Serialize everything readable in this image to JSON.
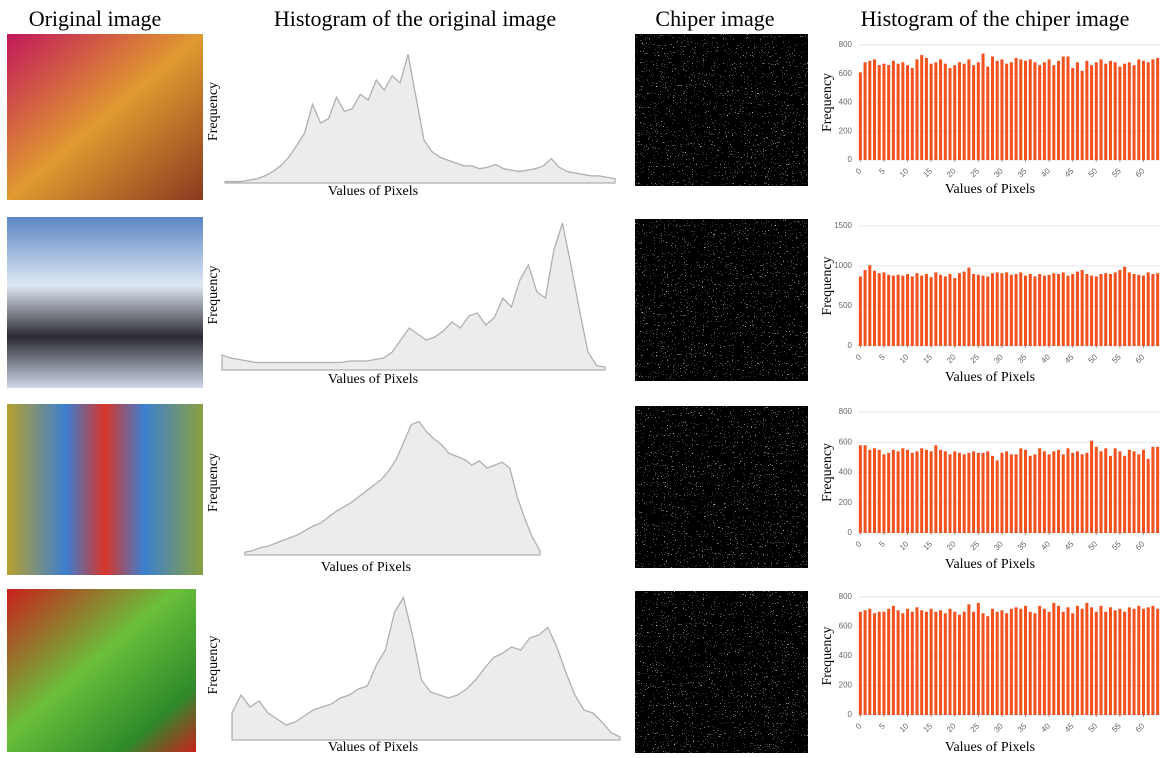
{
  "headers": [
    "Original image",
    "Histogram of the original image",
    "Chiper image",
    "Histogram of the chiper image"
  ],
  "chart_data": [
    {
      "type": "area",
      "xlabel": "Values of Pixels",
      "ylabel": "Frequency",
      "ylim": [
        0,
        100
      ],
      "color": "#b0b0b0",
      "values": [
        1,
        1,
        1,
        2,
        3,
        5,
        8,
        12,
        18,
        26,
        35,
        55,
        42,
        45,
        60,
        50,
        52,
        62,
        58,
        72,
        65,
        75,
        70,
        90,
        60,
        30,
        22,
        18,
        16,
        14,
        12,
        12,
        10,
        11,
        13,
        10,
        9,
        8,
        9,
        10,
        12,
        17,
        11,
        8,
        7,
        6,
        5,
        5,
        4,
        3
      ]
    },
    {
      "type": "bar",
      "xlabel": "Values of Pixels",
      "ylabel": "Frequency",
      "ylim": [
        0,
        800
      ],
      "yticks": [
        0,
        200,
        400,
        600,
        800
      ],
      "xlim": [
        -0.5,
        63.5
      ],
      "xticks": [
        0,
        5,
        10,
        15,
        20,
        25,
        30,
        35,
        40,
        45,
        50,
        55,
        60
      ],
      "color": "#f4511e",
      "values": [
        610,
        680,
        690,
        700,
        660,
        670,
        660,
        690,
        670,
        680,
        660,
        640,
        700,
        730,
        710,
        670,
        680,
        700,
        670,
        640,
        660,
        680,
        670,
        700,
        660,
        680,
        740,
        650,
        720,
        690,
        700,
        670,
        680,
        710,
        700,
        690,
        700,
        680,
        660,
        680,
        700,
        660,
        690,
        720,
        720,
        640,
        680,
        620,
        690,
        660,
        680,
        700,
        670,
        690,
        680,
        650,
        670,
        680,
        660,
        700,
        690,
        680,
        700,
        710
      ]
    },
    {
      "type": "area",
      "xlabel": "Values of Pixels",
      "ylabel": "Frequency",
      "ylim": [
        0,
        100
      ],
      "color": "#b0b0b0",
      "values": [
        10,
        8,
        7,
        6,
        5,
        5,
        5,
        5,
        5,
        5,
        5,
        5,
        5,
        5,
        5,
        6,
        6,
        6,
        7,
        8,
        12,
        20,
        28,
        24,
        20,
        22,
        26,
        32,
        28,
        36,
        38,
        30,
        35,
        48,
        42,
        60,
        70,
        52,
        48,
        80,
        98,
        70,
        40,
        12,
        3,
        2
      ]
    },
    {
      "type": "bar",
      "xlabel": "Values of Pixels",
      "ylabel": "Frequency",
      "ylim": [
        0,
        1500
      ],
      "yticks": [
        0,
        500,
        1000,
        1500
      ],
      "xlim": [
        -0.5,
        63.5
      ],
      "xticks": [
        0,
        5,
        10,
        15,
        20,
        25,
        30,
        35,
        40,
        45,
        50,
        55,
        60
      ],
      "color": "#f4511e",
      "values": [
        870,
        950,
        1010,
        940,
        910,
        920,
        890,
        880,
        890,
        880,
        900,
        870,
        910,
        880,
        900,
        860,
        920,
        890,
        870,
        900,
        850,
        910,
        930,
        980,
        900,
        890,
        880,
        870,
        910,
        920,
        910,
        920,
        890,
        900,
        920,
        880,
        900,
        870,
        900,
        880,
        890,
        910,
        900,
        920,
        880,
        900,
        930,
        950,
        900,
        880,
        870,
        900,
        910,
        900,
        920,
        950,
        990,
        920,
        900,
        890,
        880,
        920,
        900,
        910
      ]
    },
    {
      "type": "area",
      "xlabel": "Values of Pixels",
      "ylabel": "Frequency",
      "ylim": [
        0,
        100
      ],
      "color": "#b0b0b0",
      "values": [
        2,
        3,
        5,
        6,
        8,
        10,
        12,
        14,
        17,
        20,
        22,
        26,
        30,
        33,
        36,
        40,
        44,
        48,
        52,
        58,
        66,
        78,
        90,
        92,
        85,
        80,
        76,
        70,
        68,
        66,
        62,
        65,
        60,
        62,
        64,
        60,
        40,
        25,
        12,
        3
      ]
    },
    {
      "type": "bar",
      "xlabel": "Values of Pixels",
      "ylabel": "Frequency",
      "ylim": [
        0,
        800
      ],
      "yticks": [
        0,
        200,
        400,
        600,
        800
      ],
      "xlim": [
        -0.5,
        63.5
      ],
      "xticks": [
        0,
        5,
        10,
        15,
        20,
        25,
        30,
        35,
        40,
        45,
        50,
        55,
        60
      ],
      "color": "#f4511e",
      "values": [
        580,
        580,
        550,
        560,
        550,
        520,
        530,
        550,
        540,
        560,
        550,
        530,
        540,
        560,
        550,
        540,
        580,
        550,
        540,
        520,
        540,
        530,
        520,
        530,
        540,
        530,
        530,
        540,
        510,
        480,
        530,
        540,
        520,
        520,
        560,
        550,
        510,
        520,
        560,
        540,
        520,
        540,
        550,
        520,
        560,
        530,
        540,
        520,
        530,
        610,
        570,
        540,
        560,
        510,
        560,
        540,
        510,
        550,
        540,
        520,
        550,
        490,
        570,
        570
      ]
    },
    {
      "type": "area",
      "xlabel": "Values of Pixels",
      "ylabel": "Frequency",
      "ylim": [
        0,
        100
      ],
      "color": "#b0b0b0",
      "values": [
        18,
        30,
        22,
        26,
        18,
        14,
        10,
        12,
        16,
        20,
        22,
        24,
        28,
        30,
        34,
        36,
        50,
        60,
        85,
        95,
        70,
        40,
        32,
        30,
        28,
        30,
        34,
        40,
        48,
        55,
        58,
        62,
        60,
        68,
        70,
        75,
        62,
        45,
        30,
        20,
        18,
        12,
        5,
        2
      ]
    },
    {
      "type": "bar",
      "xlabel": "Values of Pixels",
      "ylabel": "Frequency",
      "ylim": [
        0,
        800
      ],
      "yticks": [
        0,
        200,
        400,
        600,
        800
      ],
      "xlim": [
        -0.5,
        63.5
      ],
      "xticks": [
        0,
        5,
        10,
        15,
        20,
        25,
        30,
        35,
        40,
        45,
        50,
        55,
        60
      ],
      "color": "#f4511e",
      "values": [
        700,
        710,
        720,
        690,
        700,
        700,
        720,
        740,
        710,
        690,
        720,
        700,
        730,
        710,
        700,
        720,
        700,
        710,
        690,
        720,
        700,
        680,
        700,
        750,
        700,
        760,
        690,
        670,
        720,
        700,
        710,
        690,
        720,
        730,
        720,
        740,
        700,
        690,
        740,
        720,
        700,
        760,
        740,
        700,
        730,
        690,
        740,
        720,
        760,
        730,
        700,
        740,
        700,
        730,
        710,
        720,
        700,
        730,
        720,
        740,
        720,
        730,
        740,
        720
      ]
    }
  ]
}
